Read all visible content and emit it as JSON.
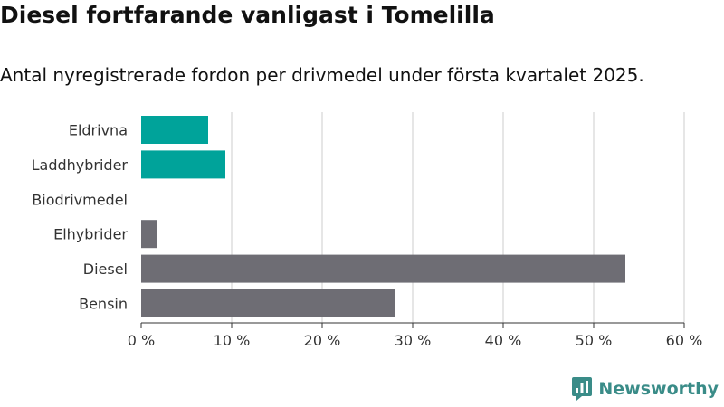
{
  "title": "Diesel fortfarande vanligast i Tomelilla",
  "subtitle": "Antal nyregistrerade fordon per drivmedel under första kvartalet 2025.",
  "brand": {
    "name": "Newsworthy",
    "color": "#3a8c88"
  },
  "colors": {
    "highlight": "#00a39a",
    "default": "#6e6d74",
    "grid": "#dddddd",
    "axis": "#333333"
  },
  "chart_data": {
    "type": "bar",
    "orientation": "horizontal",
    "categories": [
      "Eldrivna",
      "Laddhybrider",
      "Biodrivmedel",
      "Elhybrider",
      "Diesel",
      "Bensin"
    ],
    "values": [
      7.4,
      9.3,
      0,
      1.8,
      53.5,
      28.0
    ],
    "highlight": [
      true,
      true,
      false,
      false,
      false,
      false
    ],
    "xlim": [
      0,
      60
    ],
    "xticks": [
      0,
      10,
      20,
      30,
      40,
      50,
      60
    ],
    "xtick_labels": [
      "0 %",
      "10 %",
      "20 %",
      "30 %",
      "40 %",
      "50 %",
      "60 %"
    ],
    "grid": true
  }
}
